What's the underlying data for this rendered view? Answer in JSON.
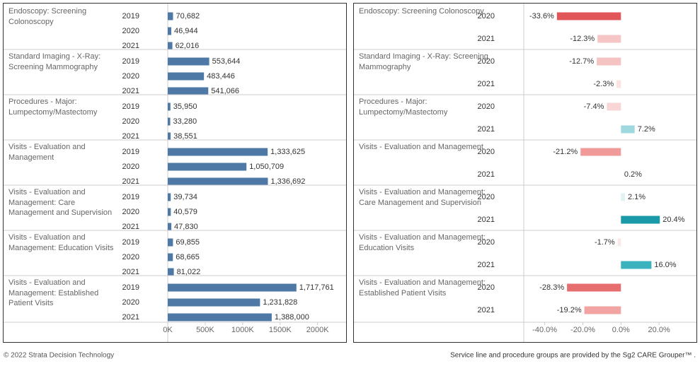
{
  "chart_data": [
    {
      "type": "bar",
      "orientation": "horizontal",
      "categories": [
        "Endoscopy: Screening Colonoscopy",
        "Standard Imaging - X-Ray: Screening Mammography",
        "Procedures - Major: Lumpectomy/Mastectomy",
        "Visits - Evaluation and Management",
        "Visits - Evaluation and Management: Care Management and Supervision",
        "Visits - Evaluation and Management: Education Visits",
        "Visits - Evaluation and Management: Established Patient Visits"
      ],
      "series": [
        {
          "name": "2019",
          "color": "#4e79a7",
          "values": [
            70682,
            553644,
            35950,
            1333625,
            39734,
            69855,
            1717761
          ],
          "value_labels": [
            "70,682",
            "553,644",
            "35,950",
            "1,333,625",
            "39,734",
            "69,855",
            "1,717,761"
          ]
        },
        {
          "name": "2020",
          "color": "#4e79a7",
          "values": [
            46944,
            483446,
            33280,
            1050709,
            40579,
            68665,
            1231828
          ],
          "value_labels": [
            "46,944",
            "483,446",
            "33,280",
            "1,050,709",
            "40,579",
            "68,665",
            "1,231,828"
          ]
        },
        {
          "name": "2021",
          "color": "#4e79a7",
          "values": [
            62016,
            541066,
            38551,
            1336692,
            47830,
            81022,
            1388000
          ],
          "value_labels": [
            "62,016",
            "541,066",
            "38,551",
            "1,336,692",
            "47,830",
            "81,022",
            "1,388,000"
          ]
        }
      ],
      "xlim": [
        0,
        2400000
      ],
      "xticks": [
        {
          "value": 0,
          "label": "0K"
        },
        {
          "value": 500000,
          "label": "500K"
        },
        {
          "value": 1000000,
          "label": "1000K"
        },
        {
          "value": 1500000,
          "label": "1500K"
        },
        {
          "value": 2000000,
          "label": "2000K"
        }
      ]
    },
    {
      "type": "bar",
      "orientation": "horizontal",
      "categories": [
        "Endoscopy: Screening Colonoscopy",
        "Standard Imaging - X-Ray: Screening Mammography",
        "Procedures - Major: Lumpectomy/Mastectomy",
        "Visits - Evaluation and Management",
        "Visits - Evaluation and Management: Care Management and Supervision",
        "Visits - Evaluation and Management: Education Visits",
        "Visits - Evaluation and Management: Established Patient Visits"
      ],
      "series": [
        {
          "name": "2020",
          "values": [
            -33.6,
            -12.7,
            -7.4,
            -21.2,
            2.1,
            -1.7,
            -28.3
          ],
          "value_labels": [
            "-33.6%",
            "-12.7%",
            "-7.4%",
            "-21.2%",
            "2.1%",
            "-1.7%",
            "-28.3%"
          ],
          "colors": [
            "#e15759",
            "#f4c3c2",
            "#f9d6d5",
            "#f09a99",
            "#dff2f4",
            "#fbe8e8",
            "#e76e6f"
          ]
        },
        {
          "name": "2021",
          "values": [
            -12.3,
            -2.3,
            7.2,
            0.2,
            20.4,
            16,
            -19.2
          ],
          "value_labels": [
            "-12.3%",
            "-2.3%",
            "7.2%",
            "0.2%",
            "20.4%",
            "16.0%",
            "-19.2%"
          ],
          "colors": [
            "#f5c6c5",
            "#fbe3e2",
            "#9fd9e0",
            "#f3fafb",
            "#1a9aa8",
            "#3bb2be",
            "#f2a4a3"
          ]
        }
      ],
      "xlim": [
        -51,
        40
      ],
      "xticks": [
        {
          "value": -40,
          "label": "-40.0%"
        },
        {
          "value": -20,
          "label": "-20.0%"
        },
        {
          "value": 0,
          "label": "0.0%"
        },
        {
          "value": 20,
          "label": "20.0%"
        }
      ]
    }
  ],
  "footer": {
    "left": "© 2022 Strata Decision Technology",
    "right": "Service line and procedure groups are provided by the Sg2 CARE Grouper™ ."
  }
}
